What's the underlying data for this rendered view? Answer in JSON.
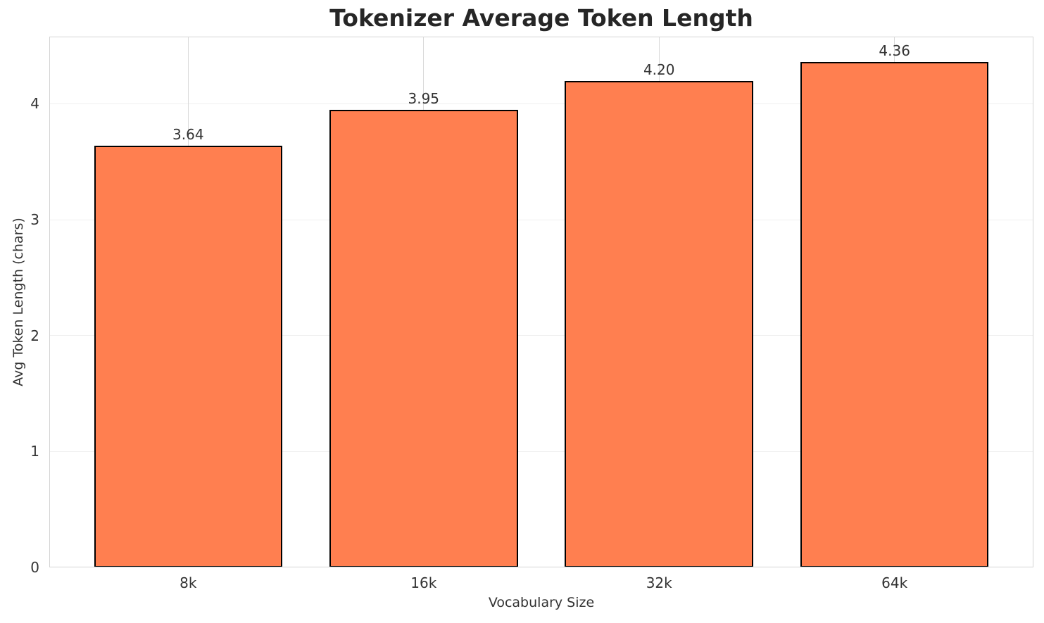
{
  "chart_data": {
    "type": "bar",
    "title": "Tokenizer Average Token Length",
    "xlabel": "Vocabulary Size",
    "ylabel": "Avg Token Length (chars)",
    "categories": [
      "8k",
      "16k",
      "32k",
      "64k"
    ],
    "values": [
      3.64,
      3.95,
      4.2,
      4.36
    ],
    "value_labels": [
      "3.64",
      "3.95",
      "4.20",
      "4.36"
    ],
    "yticks": [
      0,
      1,
      2,
      3,
      4
    ],
    "ytick_labels": [
      "0",
      "1",
      "2",
      "3",
      "4"
    ],
    "ylim": [
      0,
      4.58
    ],
    "grid": true,
    "legend_position": "none",
    "colors": {
      "bar_fill": "#FF7F50",
      "bar_edge": "#000000",
      "grid_x": "#d9d9d9",
      "grid_y": "#f0f0f0",
      "spine": "#d4d4d4",
      "text": "#333333",
      "title_text": "#262626",
      "background": "#ffffff"
    }
  }
}
